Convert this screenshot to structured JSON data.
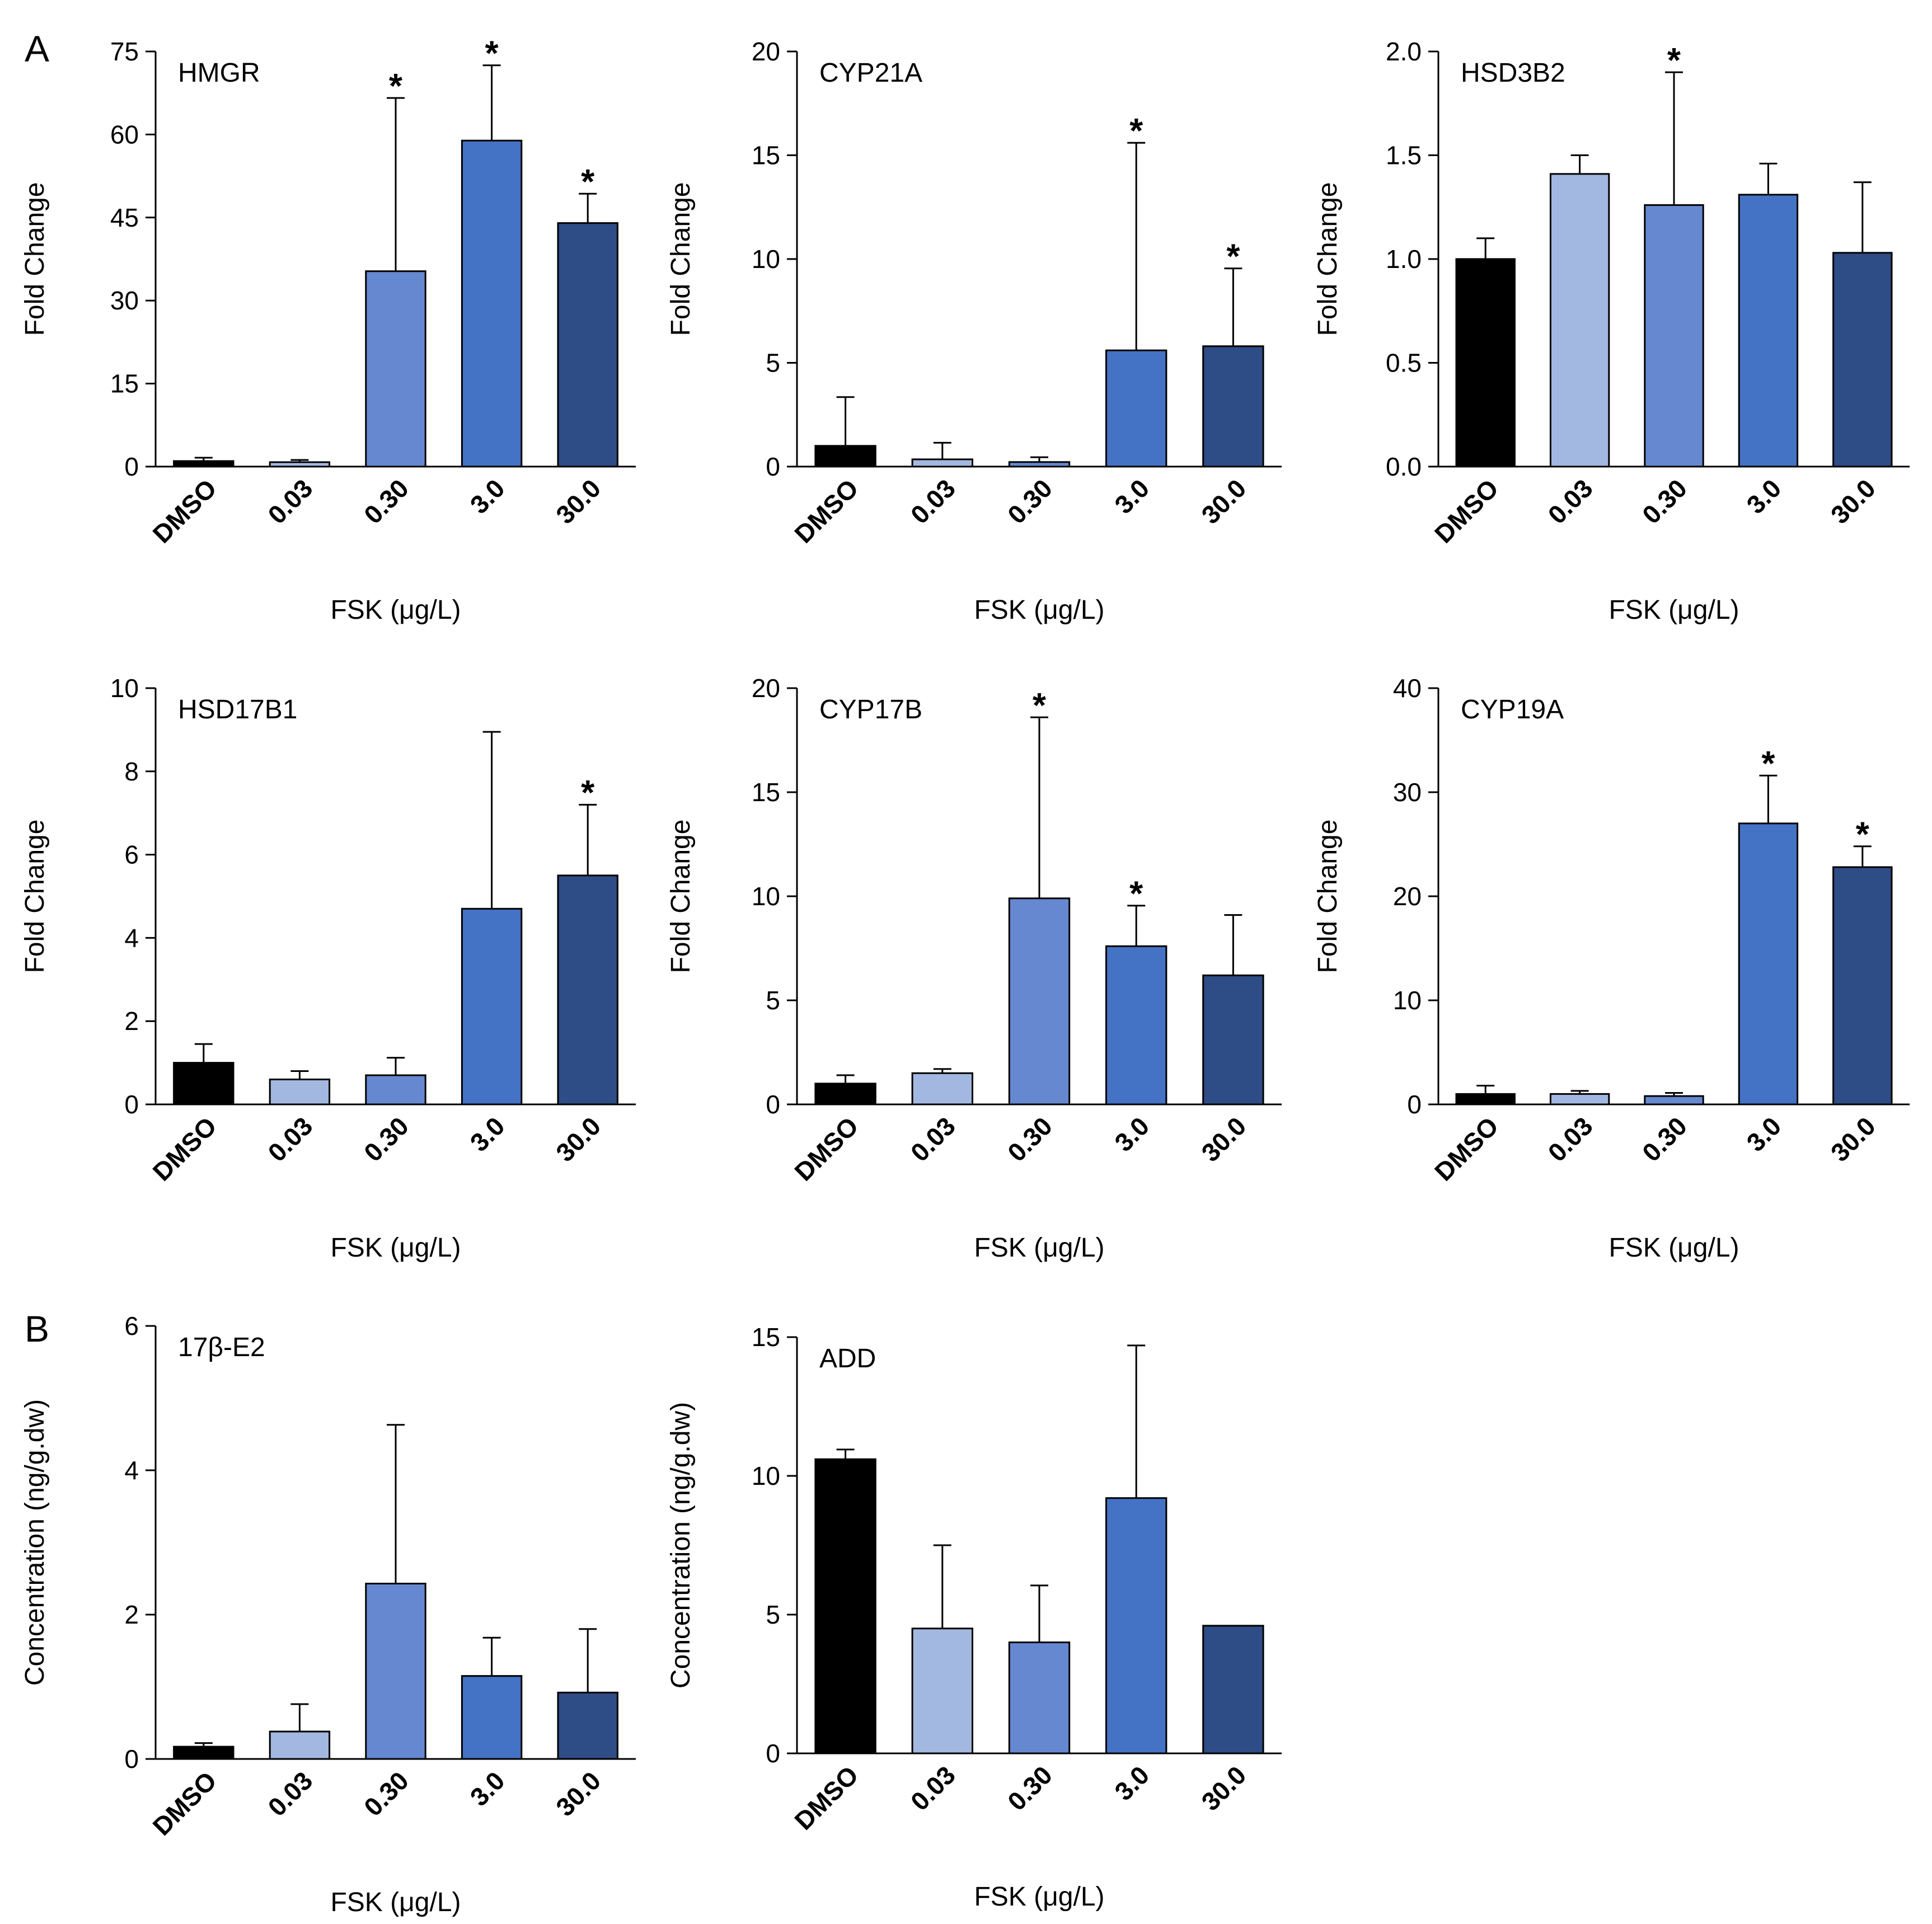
{
  "panel_labels": [
    "A",
    "B"
  ],
  "colors": {
    "DMSO": "#000000",
    "0.03": "#a3b8e0",
    "0.30": "#6688d0",
    "3.0": "#4472c4",
    "30.0": "#2e4c86"
  },
  "chart_data": [
    {
      "type": "bar",
      "panel": "A",
      "title": "HMGR",
      "xlabel": "FSK (μg/L)",
      "ylabel": "Fold Change",
      "categories": [
        "DMSO",
        "0.03",
        "0.30",
        "3.0",
        "30.0"
      ],
      "values": [
        1.0,
        0.8,
        35.3,
        58.9,
        44.0
      ],
      "errors": [
        0.6,
        0.4,
        31.3,
        13.6,
        5.3
      ],
      "significant": [
        false,
        false,
        true,
        true,
        true
      ],
      "ylim": [
        0,
        75
      ],
      "yticks": [
        "0",
        "15",
        "30",
        "45",
        "60",
        "75"
      ]
    },
    {
      "type": "bar",
      "panel": "A",
      "title": "CYP21A",
      "xlabel": "FSK (μg/L)",
      "ylabel": "Fold Change",
      "categories": [
        "DMSO",
        "0.03",
        "0.30",
        "3.0",
        "30.0"
      ],
      "values": [
        1.0,
        0.35,
        0.22,
        5.6,
        5.8
      ],
      "errors": [
        2.35,
        0.8,
        0.23,
        10.0,
        3.75
      ],
      "significant": [
        false,
        false,
        false,
        true,
        true
      ],
      "ylim": [
        0,
        20
      ],
      "yticks": [
        "0",
        "5",
        "10",
        "15",
        "20"
      ]
    },
    {
      "type": "bar",
      "panel": "A",
      "title": "HSD3B2",
      "xlabel": "FSK (μg/L)",
      "ylabel": "Fold Change",
      "categories": [
        "DMSO",
        "0.03",
        "0.30",
        "3.0",
        "30.0"
      ],
      "values": [
        1.0,
        1.41,
        1.26,
        1.31,
        1.03
      ],
      "errors": [
        0.1,
        0.09,
        0.64,
        0.15,
        0.34
      ],
      "significant": [
        false,
        false,
        true,
        false,
        false
      ],
      "ylim": [
        0,
        2.0
      ],
      "yticks": [
        "0.0",
        "0.5",
        "1.0",
        "1.5",
        "2.0"
      ]
    },
    {
      "type": "bar",
      "panel": "A",
      "title": "HSD17B1",
      "xlabel": "FSK (μg/L)",
      "ylabel": "Fold Change",
      "categories": [
        "DMSO",
        "0.03",
        "0.30",
        "3.0",
        "30.0"
      ],
      "values": [
        1.0,
        0.6,
        0.7,
        4.7,
        5.5
      ],
      "errors": [
        0.45,
        0.2,
        0.42,
        4.25,
        1.7
      ],
      "significant": [
        false,
        false,
        false,
        false,
        true
      ],
      "ylim": [
        0,
        10
      ],
      "yticks": [
        "0",
        "2",
        "4",
        "6",
        "8",
        "10"
      ]
    },
    {
      "type": "bar",
      "panel": "A",
      "title": "CYP17B",
      "xlabel": "FSK (μg/L)",
      "ylabel": "Fold Change",
      "categories": [
        "DMSO",
        "0.03",
        "0.30",
        "3.0",
        "30.0"
      ],
      "values": [
        1.0,
        1.5,
        9.9,
        7.6,
        6.2
      ],
      "errors": [
        0.4,
        0.2,
        8.7,
        1.95,
        2.9
      ],
      "significant": [
        false,
        false,
        true,
        true,
        false
      ],
      "ylim": [
        0,
        20
      ],
      "yticks": [
        "0",
        "5",
        "10",
        "15",
        "20"
      ]
    },
    {
      "type": "bar",
      "panel": "A",
      "title": "CYP19A",
      "xlabel": "FSK (μg/L)",
      "ylabel": "Fold Change",
      "categories": [
        "DMSO",
        "0.03",
        "0.30",
        "3.0",
        "30.0"
      ],
      "values": [
        1.0,
        1.0,
        0.8,
        27.0,
        22.8
      ],
      "errors": [
        0.8,
        0.3,
        0.3,
        4.6,
        2.0
      ],
      "significant": [
        false,
        false,
        false,
        true,
        true
      ],
      "ylim": [
        0,
        40
      ],
      "yticks": [
        "0",
        "10",
        "20",
        "30",
        "40"
      ]
    },
    {
      "type": "bar",
      "panel": "B",
      "title": "17β-E2",
      "xlabel": "FSK (μg/L)",
      "ylabel": "Concentration (ng/g.dw)",
      "categories": [
        "DMSO",
        "0.03",
        "0.30",
        "3.0",
        "30.0"
      ],
      "values": [
        0.17,
        0.38,
        2.43,
        1.15,
        0.92
      ],
      "errors": [
        0.05,
        0.38,
        2.2,
        0.53,
        0.88
      ],
      "significant": [
        false,
        false,
        false,
        false,
        false
      ],
      "ylim": [
        0,
        6
      ],
      "yticks": [
        "0",
        "2",
        "4",
        "6"
      ]
    },
    {
      "type": "bar",
      "panel": "B",
      "title": "ADD",
      "xlabel": "FSK (μg/L)",
      "ylabel": "Concentration (ng/g.dw)",
      "categories": [
        "DMSO",
        "0.03",
        "0.30",
        "3.0",
        "30.0"
      ],
      "values": [
        10.6,
        4.5,
        4.0,
        9.2,
        4.6
      ],
      "errors": [
        0.35,
        3.0,
        2.05,
        5.5,
        0
      ],
      "significant": [
        false,
        false,
        false,
        false,
        false
      ],
      "ylim": [
        0,
        15
      ],
      "yticks": [
        "0",
        "5",
        "10",
        "15"
      ]
    }
  ]
}
